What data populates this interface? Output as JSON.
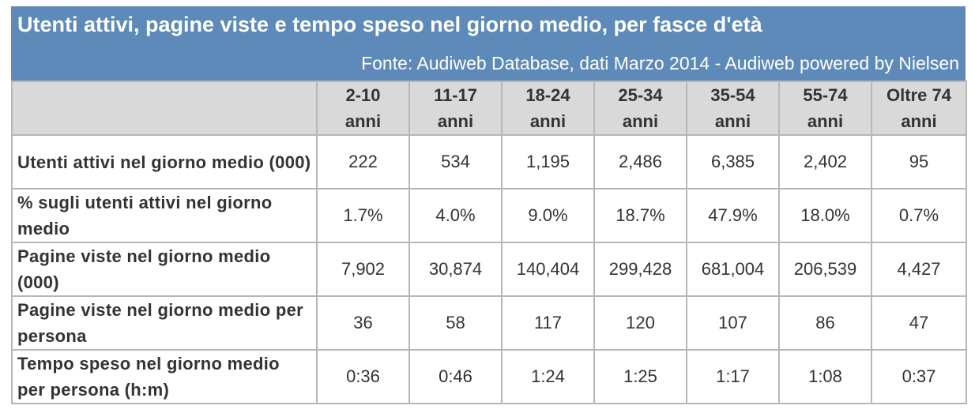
{
  "title": "Utenti attivi, pagine viste e tempo speso nel giorno medio, per fasce d'età",
  "source": "Fonte: Audiweb Database, dati Marzo 2014 - Audiweb powered by Nielsen",
  "colors": {
    "banner": "#5d8ab8",
    "header_bg": "#d9d9d9",
    "border": "#b7b7b7",
    "text": "#333333"
  },
  "columns": [
    {
      "range": "2-10",
      "unit": "anni"
    },
    {
      "range": "11-17",
      "unit": "anni"
    },
    {
      "range": "18-24",
      "unit": "anni"
    },
    {
      "range": "25-34",
      "unit": "anni"
    },
    {
      "range": "35-54",
      "unit": "anni"
    },
    {
      "range": "55-74",
      "unit": "anni"
    },
    {
      "range": "Oltre 74",
      "unit": "anni"
    }
  ],
  "rows": [
    {
      "label": "Utenti attivi nel giorno medio (000)",
      "values": [
        "222",
        "534",
        "1,195",
        "2,486",
        "6,385",
        "2,402",
        "95"
      ]
    },
    {
      "label": "% sugli utenti attivi nel giorno medio",
      "values": [
        "1.7%",
        "4.0%",
        "9.0%",
        "18.7%",
        "47.9%",
        "18.0%",
        "0.7%"
      ]
    },
    {
      "label": "Pagine viste nel giorno medio (000)",
      "values": [
        "7,902",
        "30,874",
        "140,404",
        "299,428",
        "681,004",
        "206,539",
        "4,427"
      ]
    },
    {
      "label": "Pagine viste nel giorno medio per persona",
      "values": [
        "36",
        "58",
        "117",
        "120",
        "107",
        "86",
        "47"
      ]
    },
    {
      "label": "Tempo speso nel giorno medio per persona (h:m)",
      "values": [
        "0:36",
        "0:46",
        "1:24",
        "1:25",
        "1:17",
        "1:08",
        "0:37"
      ]
    }
  ]
}
